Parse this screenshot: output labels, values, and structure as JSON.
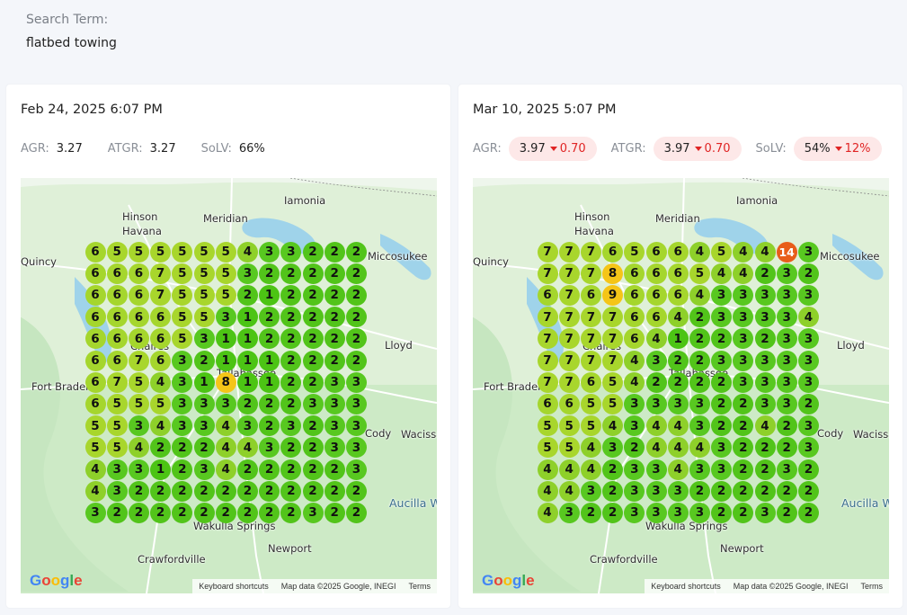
{
  "search": {
    "label": "Search Term:",
    "value": "flatbed towing"
  },
  "pin_colors": {
    "1": "#4cc414",
    "2": "#52c41a",
    "3": "#58c820",
    "4": "#8ed02a",
    "5": "#a8d62c",
    "6": "#a5d62d",
    "7": "#a8d62c",
    "8": "#f5c518",
    "9": "#f5c518",
    "14": "#e85d1a"
  },
  "map_labels": {
    "places": [
      "Iamonia",
      "Hinson",
      "Havana",
      "Meridian",
      "Miccosukee",
      "Quincy",
      "Lloyd",
      "Fort Braden",
      "Tallahassee",
      "Chaires",
      "Cody",
      "Wacissa",
      "Wakulla Springs",
      "Newport",
      "Crawfordville",
      "Aucilla Wildlife Management Area"
    ],
    "keyboard_shortcuts": "Keyboard shortcuts",
    "map_data": "Map data ©2025 Google, INEGI",
    "terms": "Terms",
    "google": "Google"
  },
  "cards": [
    {
      "date": "Feb 24, 2025 6:07 PM",
      "metrics": [
        {
          "label": "AGR:",
          "value": "3.27"
        },
        {
          "label": "ATGR:",
          "value": "3.27"
        },
        {
          "label": "SoLV:",
          "value": "66%"
        }
      ],
      "grid": [
        [
          6,
          5,
          5,
          5,
          5,
          5,
          5,
          4,
          3,
          3,
          2,
          2,
          2
        ],
        [
          6,
          6,
          6,
          7,
          5,
          5,
          5,
          3,
          2,
          2,
          2,
          2,
          2
        ],
        [
          6,
          6,
          6,
          7,
          5,
          5,
          5,
          2,
          1,
          2,
          2,
          2,
          2
        ],
        [
          6,
          6,
          6,
          6,
          5,
          5,
          3,
          1,
          2,
          2,
          2,
          2,
          2
        ],
        [
          6,
          6,
          6,
          6,
          5,
          3,
          1,
          1,
          2,
          2,
          2,
          2,
          2
        ],
        [
          6,
          6,
          7,
          6,
          3,
          2,
          1,
          1,
          1,
          2,
          2,
          2,
          2
        ],
        [
          6,
          7,
          5,
          4,
          3,
          1,
          8,
          1,
          1,
          2,
          2,
          3,
          3
        ],
        [
          6,
          5,
          5,
          5,
          3,
          3,
          3,
          2,
          2,
          2,
          3,
          3,
          3
        ],
        [
          5,
          5,
          3,
          4,
          3,
          3,
          4,
          3,
          2,
          3,
          2,
          3,
          3
        ],
        [
          5,
          5,
          4,
          2,
          2,
          2,
          4,
          4,
          3,
          2,
          2,
          3,
          3
        ],
        [
          4,
          3,
          3,
          1,
          2,
          3,
          4,
          2,
          2,
          2,
          2,
          2,
          3
        ],
        [
          4,
          3,
          2,
          2,
          2,
          2,
          2,
          2,
          2,
          2,
          2,
          2,
          2
        ],
        [
          3,
          2,
          2,
          2,
          2,
          2,
          2,
          2,
          2,
          2,
          3,
          2,
          2
        ]
      ]
    },
    {
      "date": "Mar 10, 2025 5:07 PM",
      "metrics": [
        {
          "label": "AGR:",
          "value": "3.97",
          "change": "0.70"
        },
        {
          "label": "ATGR:",
          "value": "3.97",
          "change": "0.70"
        },
        {
          "label": "SoLV:",
          "value": "54%",
          "change": "12%"
        }
      ],
      "grid": [
        [
          7,
          7,
          7,
          6,
          5,
          6,
          6,
          4,
          5,
          4,
          4,
          14,
          3
        ],
        [
          7,
          7,
          7,
          8,
          6,
          6,
          6,
          5,
          4,
          4,
          2,
          3,
          2
        ],
        [
          6,
          7,
          6,
          9,
          6,
          6,
          6,
          4,
          3,
          3,
          3,
          3,
          3
        ],
        [
          7,
          7,
          7,
          7,
          6,
          6,
          4,
          2,
          3,
          3,
          3,
          3,
          4
        ],
        [
          7,
          7,
          7,
          7,
          6,
          4,
          1,
          2,
          2,
          3,
          2,
          3,
          3
        ],
        [
          7,
          7,
          7,
          7,
          4,
          3,
          2,
          2,
          3,
          3,
          3,
          3,
          3
        ],
        [
          7,
          7,
          6,
          5,
          4,
          2,
          2,
          2,
          2,
          3,
          3,
          3,
          3
        ],
        [
          6,
          6,
          5,
          5,
          3,
          3,
          3,
          3,
          2,
          2,
          3,
          3,
          2
        ],
        [
          5,
          5,
          5,
          4,
          3,
          4,
          4,
          3,
          2,
          2,
          4,
          2,
          3
        ],
        [
          5,
          5,
          4,
          3,
          2,
          4,
          4,
          4,
          3,
          2,
          2,
          2,
          3
        ],
        [
          4,
          4,
          4,
          2,
          3,
          3,
          4,
          3,
          3,
          2,
          2,
          3,
          2
        ],
        [
          4,
          4,
          3,
          2,
          3,
          3,
          3,
          2,
          2,
          2,
          2,
          2,
          2
        ],
        [
          4,
          3,
          2,
          2,
          3,
          3,
          3,
          3,
          2,
          2,
          3,
          2,
          2
        ]
      ]
    }
  ]
}
